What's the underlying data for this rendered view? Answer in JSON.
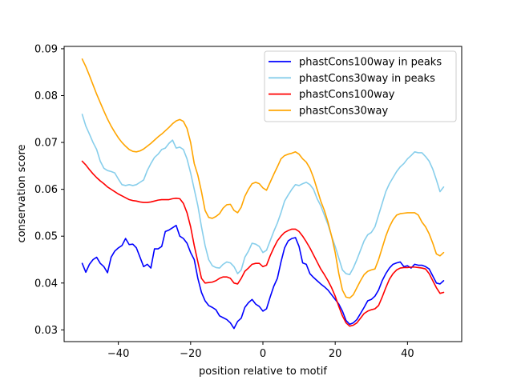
{
  "chart_data": {
    "type": "line",
    "title": "",
    "xlabel": "position relative to motif",
    "ylabel": "conservation score",
    "xlim": [
      -55,
      55
    ],
    "ylim": [
      0.0275,
      0.0905
    ],
    "xticks": [
      -40,
      -20,
      0,
      20,
      40
    ],
    "yticks": [
      0.03,
      0.04,
      0.05,
      0.06,
      0.07,
      0.08,
      0.09
    ],
    "ytick_labels": [
      "0.03",
      "0.04",
      "0.05",
      "0.06",
      "0.07",
      "0.08",
      "0.09"
    ],
    "legend_position": "top-right",
    "series": [
      {
        "name": "phastCons100way in peaks",
        "color": "#0000ff",
        "x": [
          -50,
          -49,
          -48,
          -47,
          -46,
          -45,
          -44,
          -43,
          -42,
          -41,
          -40,
          -39,
          -38,
          -37,
          -36,
          -35,
          -34,
          -33,
          -32,
          -31,
          -30,
          -29,
          -28,
          -27,
          -26,
          -25,
          -24,
          -23,
          -22,
          -21,
          -20,
          -19,
          -18,
          -17,
          -16,
          -15,
          -14,
          -13,
          -12,
          -11,
          -10,
          -9,
          -8,
          -7,
          -6,
          -5,
          -4,
          -3,
          -2,
          -1,
          0,
          1,
          2,
          3,
          4,
          5,
          6,
          7,
          8,
          9,
          10,
          11,
          12,
          13,
          14,
          15,
          16,
          17,
          18,
          19,
          20,
          21,
          22,
          23,
          24,
          25,
          26,
          27,
          28,
          29,
          30,
          31,
          32,
          33,
          34,
          35,
          36,
          37,
          38,
          39,
          40,
          41,
          42,
          43,
          44,
          45,
          46,
          47,
          48,
          49,
          50
        ],
        "values": [
          0.0442,
          0.0423,
          0.044,
          0.045,
          0.0455,
          0.0442,
          0.0435,
          0.0422,
          0.0455,
          0.0468,
          0.0475,
          0.048,
          0.0495,
          0.0482,
          0.0483,
          0.0475,
          0.0455,
          0.0435,
          0.044,
          0.0432,
          0.0473,
          0.0473,
          0.0478,
          0.051,
          0.0513,
          0.0518,
          0.0523,
          0.05,
          0.0495,
          0.0485,
          0.0465,
          0.045,
          0.041,
          0.038,
          0.0362,
          0.0352,
          0.0348,
          0.0343,
          0.033,
          0.0326,
          0.0322,
          0.0315,
          0.0303,
          0.0318,
          0.0325,
          0.0348,
          0.0358,
          0.0365,
          0.0355,
          0.035,
          0.034,
          0.0345,
          0.037,
          0.0393,
          0.041,
          0.0445,
          0.0475,
          0.049,
          0.0495,
          0.0497,
          0.0478,
          0.0443,
          0.044,
          0.042,
          0.0412,
          0.0405,
          0.0398,
          0.0392,
          0.0385,
          0.0375,
          0.0365,
          0.0355,
          0.034,
          0.032,
          0.0312,
          0.0315,
          0.0322,
          0.0335,
          0.0348,
          0.0362,
          0.0365,
          0.0372,
          0.0385,
          0.0405,
          0.042,
          0.0432,
          0.044,
          0.0443,
          0.0445,
          0.0435,
          0.0437,
          0.0432,
          0.044,
          0.0438,
          0.0438,
          0.0435,
          0.043,
          0.0415,
          0.04,
          0.0398,
          0.0405
        ]
      },
      {
        "name": "phastCons30way in peaks",
        "color": "#87ceeb",
        "x": [
          -50,
          -49,
          -48,
          -47,
          -46,
          -45,
          -44,
          -43,
          -42,
          -41,
          -40,
          -39,
          -38,
          -37,
          -36,
          -35,
          -34,
          -33,
          -32,
          -31,
          -30,
          -29,
          -28,
          -27,
          -26,
          -25,
          -24,
          -23,
          -22,
          -21,
          -20,
          -19,
          -18,
          -17,
          -16,
          -15,
          -14,
          -13,
          -12,
          -11,
          -10,
          -9,
          -8,
          -7,
          -6,
          -5,
          -4,
          -3,
          -2,
          -1,
          0,
          1,
          2,
          3,
          4,
          5,
          6,
          7,
          8,
          9,
          10,
          11,
          12,
          13,
          14,
          15,
          16,
          17,
          18,
          19,
          20,
          21,
          22,
          23,
          24,
          25,
          26,
          27,
          28,
          29,
          30,
          31,
          32,
          33,
          34,
          35,
          36,
          37,
          38,
          39,
          40,
          41,
          42,
          43,
          44,
          45,
          46,
          47,
          48,
          49,
          50
        ],
        "values": [
          0.076,
          0.0735,
          0.0718,
          0.07,
          0.0685,
          0.066,
          0.0645,
          0.064,
          0.0638,
          0.0635,
          0.0622,
          0.061,
          0.0608,
          0.061,
          0.0608,
          0.061,
          0.0615,
          0.062,
          0.064,
          0.0655,
          0.0668,
          0.0675,
          0.0685,
          0.0688,
          0.0698,
          0.0705,
          0.0688,
          0.069,
          0.0685,
          0.0665,
          0.0635,
          0.06,
          0.0565,
          0.052,
          0.048,
          0.045,
          0.0437,
          0.0433,
          0.0432,
          0.044,
          0.0445,
          0.0443,
          0.0435,
          0.042,
          0.0428,
          0.0455,
          0.0468,
          0.0485,
          0.0483,
          0.0478,
          0.0465,
          0.047,
          0.049,
          0.051,
          0.0528,
          0.055,
          0.0575,
          0.0588,
          0.06,
          0.061,
          0.0608,
          0.0612,
          0.0615,
          0.061,
          0.06,
          0.058,
          0.0565,
          0.0545,
          0.0525,
          0.05,
          0.0478,
          0.0453,
          0.0428,
          0.042,
          0.0418,
          0.0432,
          0.045,
          0.047,
          0.049,
          0.0503,
          0.0508,
          0.052,
          0.0545,
          0.057,
          0.0595,
          0.0612,
          0.0625,
          0.0638,
          0.0648,
          0.0655,
          0.0665,
          0.0672,
          0.068,
          0.0678,
          0.0678,
          0.067,
          0.066,
          0.0643,
          0.062,
          0.0595,
          0.0605
        ]
      },
      {
        "name": "phastCons100way",
        "color": "#ff0000",
        "x": [
          -50,
          -49,
          -48,
          -47,
          -46,
          -45,
          -44,
          -43,
          -42,
          -41,
          -40,
          -39,
          -38,
          -37,
          -36,
          -35,
          -34,
          -33,
          -32,
          -31,
          -30,
          -29,
          -28,
          -27,
          -26,
          -25,
          -24,
          -23,
          -22,
          -21,
          -20,
          -19,
          -18,
          -17,
          -16,
          -15,
          -14,
          -13,
          -12,
          -11,
          -10,
          -9,
          -8,
          -7,
          -6,
          -5,
          -4,
          -3,
          -2,
          -1,
          0,
          1,
          2,
          3,
          4,
          5,
          6,
          7,
          8,
          9,
          10,
          11,
          12,
          13,
          14,
          15,
          16,
          17,
          18,
          19,
          20,
          21,
          22,
          23,
          24,
          25,
          26,
          27,
          28,
          29,
          30,
          31,
          32,
          33,
          34,
          35,
          36,
          37,
          38,
          39,
          40,
          41,
          42,
          43,
          44,
          45,
          46,
          47,
          48,
          49,
          50
        ],
        "values": [
          0.066,
          0.0652,
          0.0642,
          0.0633,
          0.0625,
          0.0618,
          0.0612,
          0.0605,
          0.06,
          0.0595,
          0.059,
          0.0586,
          0.0582,
          0.0578,
          0.0576,
          0.0575,
          0.0573,
          0.0572,
          0.0572,
          0.0573,
          0.0575,
          0.0577,
          0.0578,
          0.0578,
          0.0578,
          0.058,
          0.0581,
          0.058,
          0.057,
          0.055,
          0.052,
          0.048,
          0.0445,
          0.041,
          0.04,
          0.0401,
          0.0402,
          0.0405,
          0.041,
          0.0413,
          0.0413,
          0.041,
          0.04,
          0.0398,
          0.041,
          0.0425,
          0.0432,
          0.044,
          0.0442,
          0.0442,
          0.0435,
          0.0438,
          0.0458,
          0.0475,
          0.049,
          0.05,
          0.0508,
          0.0512,
          0.0515,
          0.0515,
          0.051,
          0.05,
          0.0488,
          0.0475,
          0.046,
          0.0445,
          0.043,
          0.0418,
          0.0405,
          0.039,
          0.0372,
          0.035,
          0.033,
          0.0315,
          0.0308,
          0.031,
          0.0315,
          0.0325,
          0.0335,
          0.034,
          0.0343,
          0.0345,
          0.0352,
          0.037,
          0.039,
          0.0408,
          0.042,
          0.0428,
          0.0432,
          0.0433,
          0.0433,
          0.0434,
          0.0434,
          0.0433,
          0.0432,
          0.043,
          0.042,
          0.0405,
          0.039,
          0.0378,
          0.038
        ]
      },
      {
        "name": "phastCons30way",
        "color": "#ffa500",
        "x": [
          -50,
          -49,
          -48,
          -47,
          -46,
          -45,
          -44,
          -43,
          -42,
          -41,
          -40,
          -39,
          -38,
          -37,
          -36,
          -35,
          -34,
          -33,
          -32,
          -31,
          -30,
          -29,
          -28,
          -27,
          -26,
          -25,
          -24,
          -23,
          -22,
          -21,
          -20,
          -19,
          -18,
          -17,
          -16,
          -15,
          -14,
          -13,
          -12,
          -11,
          -10,
          -9,
          -8,
          -7,
          -6,
          -5,
          -4,
          -3,
          -2,
          -1,
          0,
          1,
          2,
          3,
          4,
          5,
          6,
          7,
          8,
          9,
          10,
          11,
          12,
          13,
          14,
          15,
          16,
          17,
          18,
          19,
          20,
          21,
          22,
          23,
          24,
          25,
          26,
          27,
          28,
          29,
          30,
          31,
          32,
          33,
          34,
          35,
          36,
          37,
          38,
          39,
          40,
          41,
          42,
          43,
          44,
          45,
          46,
          47,
          48,
          49,
          50
        ],
        "values": [
          0.0878,
          0.0862,
          0.0843,
          0.0823,
          0.0803,
          0.0785,
          0.0767,
          0.075,
          0.0735,
          0.0722,
          0.071,
          0.07,
          0.0692,
          0.0685,
          0.0681,
          0.068,
          0.0682,
          0.0686,
          0.0692,
          0.0698,
          0.0705,
          0.0712,
          0.0718,
          0.0725,
          0.0732,
          0.074,
          0.0746,
          0.0749,
          0.0745,
          0.073,
          0.07,
          0.0655,
          0.063,
          0.0595,
          0.0555,
          0.054,
          0.0538,
          0.0542,
          0.0548,
          0.056,
          0.0567,
          0.0568,
          0.0555,
          0.055,
          0.0562,
          0.0585,
          0.06,
          0.0612,
          0.0615,
          0.0612,
          0.0603,
          0.0598,
          0.0615,
          0.0632,
          0.0648,
          0.0665,
          0.0672,
          0.0675,
          0.0677,
          0.068,
          0.0675,
          0.0665,
          0.0658,
          0.0645,
          0.0625,
          0.06,
          0.0575,
          0.0555,
          0.053,
          0.05,
          0.0465,
          0.042,
          0.0385,
          0.037,
          0.0368,
          0.0375,
          0.039,
          0.0405,
          0.0418,
          0.0425,
          0.0428,
          0.043,
          0.045,
          0.0475,
          0.05,
          0.052,
          0.0535,
          0.0545,
          0.0548,
          0.0549,
          0.055,
          0.055,
          0.055,
          0.0545,
          0.053,
          0.052,
          0.0505,
          0.0485,
          0.0462,
          0.0458,
          0.0465
        ]
      }
    ]
  }
}
